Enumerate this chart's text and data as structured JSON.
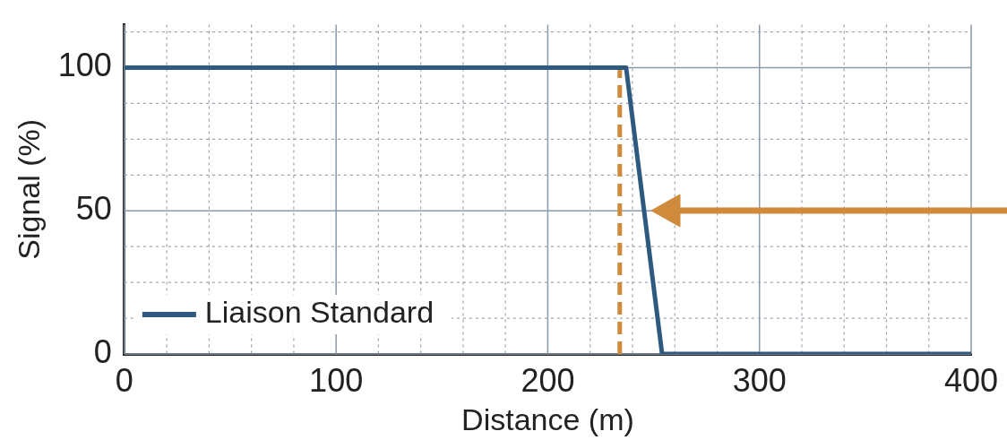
{
  "chart_data": {
    "type": "line",
    "xlabel": "Distance (m)",
    "ylabel": "Signal (%)",
    "series": [
      {
        "name": "Liaison Standard",
        "color": "#2f5a80",
        "x": [
          0,
          237,
          254,
          400
        ],
        "values": [
          100,
          100,
          0,
          0
        ]
      },
      {
        "color": "#d08a3c",
        "line_style": "dashed",
        "x": [
          234,
          234
        ],
        "values": [
          0,
          100
        ]
      }
    ],
    "xlim": [
      0,
      400
    ],
    "ylim": [
      0,
      115
    ],
    "xticks": [
      0,
      {
        "value": 20,
        "label": null
      },
      {
        "value": 40,
        "label": null
      },
      {
        "value": 60,
        "label": null
      },
      {
        "value": 80,
        "label": null
      },
      100,
      {
        "value": 120,
        "label": null
      },
      {
        "value": 140,
        "label": null
      },
      {
        "value": 160,
        "label": null
      },
      {
        "value": 180,
        "label": null
      },
      200,
      {
        "value": 220,
        "label": null
      },
      {
        "value": 240,
        "label": null
      },
      {
        "value": 260,
        "label": null
      },
      {
        "value": 280,
        "label": null
      },
      300,
      {
        "value": 320,
        "label": null
      },
      {
        "value": 340,
        "label": null
      },
      {
        "value": 360,
        "label": null
      },
      {
        "value": 380,
        "label": null
      },
      400
    ],
    "yticks": [
      0,
      {
        "value": 12.5,
        "label": null
      },
      {
        "value": 25,
        "label": null
      },
      {
        "value": 37.5,
        "label": null
      },
      50,
      {
        "value": 62.5,
        "label": null
      },
      {
        "value": 75,
        "label": null
      },
      {
        "value": 87.5,
        "label": null
      },
      100,
      {
        "value": 112.5,
        "label": null
      }
    ],
    "grid": true,
    "legend": "bottom left",
    "marker": "none",
    "line_style": "solid"
  }
}
